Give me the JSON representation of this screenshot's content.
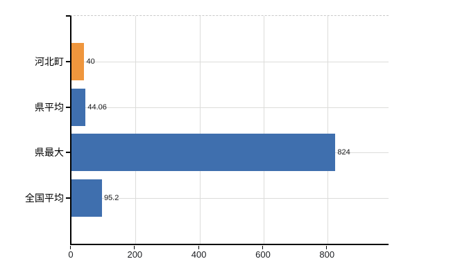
{
  "chart_data": {
    "type": "bar",
    "orientation": "horizontal",
    "title": "",
    "xlabel": "",
    "ylabel": "",
    "categories": [
      "河北町",
      "県平均",
      "県最大",
      "全国平均"
    ],
    "values": [
      40,
      44.06,
      824,
      95.2
    ],
    "value_labels": [
      "40",
      "44.06",
      "824",
      "95.2"
    ],
    "bar_colors": [
      "#ef963d",
      "#3f6fae",
      "#3f6fae",
      "#3f6fae"
    ],
    "accent_orange": "#ef963d",
    "accent_blue": "#3f6fae",
    "gridline_color": "#dcdcda",
    "axis_color": "#000000",
    "xlim": [
      0,
      990
    ],
    "xticks": [
      0,
      200,
      400,
      600,
      800
    ],
    "xtick_labels": [
      "0",
      "200",
      "400",
      "600",
      "800"
    ],
    "grid": true,
    "legend": false
  }
}
